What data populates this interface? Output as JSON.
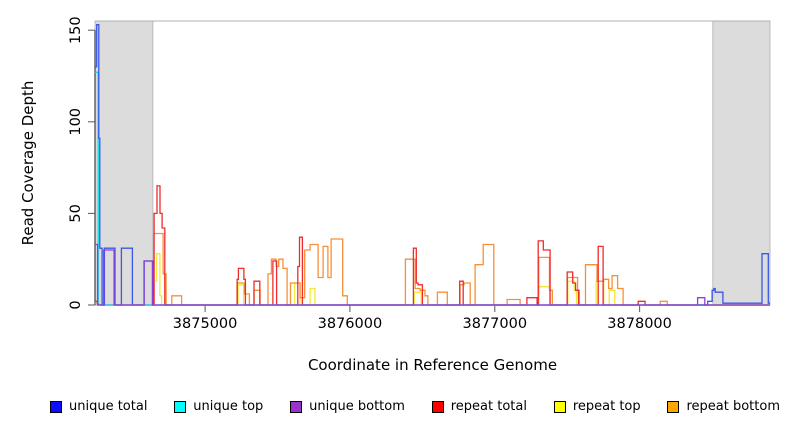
{
  "chart_data": {
    "type": "line-step",
    "title": "",
    "xlabel": "Coordinate in Reference Genome",
    "ylabel": "Read Coverage Depth",
    "xlim": [
      3874240,
      3878900
    ],
    "ylim": [
      0,
      155
    ],
    "xticks": [
      3875000,
      3876000,
      3877000,
      3878000
    ],
    "xtick_labels": [
      "3875000",
      "3876000",
      "3877000",
      "3878000"
    ],
    "yticks": [
      0,
      50,
      100,
      150
    ],
    "ytick_labels": [
      "0",
      "50",
      "100",
      "150"
    ],
    "grid": false,
    "legend_position": "bottom",
    "shade_color": "#dcdcdc",
    "shade_border": "#b0b0b0",
    "axis_color": "#333333",
    "tick_color": "#666666",
    "shaded_regions": [
      {
        "x0": 3874240,
        "x1": 3874640
      },
      {
        "x0": 3878505,
        "x1": 3878900
      }
    ],
    "draw_order": [
      "repeat top",
      "repeat bottom",
      "repeat total",
      "unique top",
      "unique total",
      "unique bottom"
    ],
    "series": [
      {
        "name": "unique total",
        "color": "#3a57e8",
        "legend_color": "#0d0dff",
        "points": [
          [
            3874240,
            130
          ],
          [
            3874252,
            153
          ],
          [
            3874266,
            91
          ],
          [
            3874273,
            31
          ],
          [
            3874289,
            0
          ],
          [
            3874305,
            31
          ],
          [
            3874378,
            0
          ],
          [
            3874422,
            31
          ],
          [
            3874498,
            0
          ],
          [
            3874580,
            24
          ],
          [
            3874640,
            0
          ],
          [
            3878470,
            2
          ],
          [
            3878500,
            8
          ],
          [
            3878512,
            9
          ],
          [
            3878522,
            7
          ],
          [
            3878575,
            1
          ],
          [
            3878845,
            28
          ],
          [
            3878888,
            1
          ]
        ]
      },
      {
        "name": "unique top",
        "color": "#00dcec",
        "legend_color": "#00ffff",
        "points": [
          [
            3874240,
            127
          ],
          [
            3874262,
            0
          ]
        ]
      },
      {
        "name": "unique bottom",
        "color": "#8f3fd4",
        "legend_color": "#9933cc",
        "points": [
          [
            3874240,
            33
          ],
          [
            3874258,
            0
          ],
          [
            3874300,
            30
          ],
          [
            3874372,
            0
          ],
          [
            3874578,
            24
          ],
          [
            3874636,
            0
          ],
          [
            3878400,
            4
          ],
          [
            3878450,
            0
          ]
        ]
      },
      {
        "name": "repeat total",
        "color": "#ee2c2c",
        "legend_color": "#ff0000",
        "points": [
          [
            3874240,
            2
          ],
          [
            3874258,
            0
          ],
          [
            3874648,
            50
          ],
          [
            3874668,
            65
          ],
          [
            3874689,
            50
          ],
          [
            3874703,
            42
          ],
          [
            3874722,
            0
          ],
          [
            3875222,
            14
          ],
          [
            3875230,
            20
          ],
          [
            3875268,
            14
          ],
          [
            3875278,
            0
          ],
          [
            3875338,
            13
          ],
          [
            3875378,
            0
          ],
          [
            3875468,
            24
          ],
          [
            3875494,
            0
          ],
          [
            3875640,
            21
          ],
          [
            3875652,
            37
          ],
          [
            3875672,
            0
          ],
          [
            3876438,
            31
          ],
          [
            3876458,
            12
          ],
          [
            3876470,
            11
          ],
          [
            3876500,
            0
          ],
          [
            3876758,
            13
          ],
          [
            3876782,
            0
          ],
          [
            3877222,
            4
          ],
          [
            3877292,
            0
          ],
          [
            3877300,
            35
          ],
          [
            3877335,
            30
          ],
          [
            3877382,
            0
          ],
          [
            3877500,
            18
          ],
          [
            3877538,
            12
          ],
          [
            3877558,
            8
          ],
          [
            3877578,
            0
          ],
          [
            3877714,
            32
          ],
          [
            3877748,
            0
          ],
          [
            3877990,
            2
          ],
          [
            3878038,
            0
          ]
        ]
      },
      {
        "name": "repeat top",
        "color": "#f2e73b",
        "legend_color": "#ffff00",
        "points": [
          [
            3874658,
            13
          ],
          [
            3874666,
            28
          ],
          [
            3874688,
            5
          ],
          [
            3874700,
            0
          ],
          [
            3875228,
            11
          ],
          [
            3875266,
            0
          ],
          [
            3875618,
            12
          ],
          [
            3875655,
            0
          ],
          [
            3875725,
            9
          ],
          [
            3875758,
            0
          ],
          [
            3876444,
            7
          ],
          [
            3876492,
            0
          ],
          [
            3877300,
            10
          ],
          [
            3877380,
            0
          ],
          [
            3877504,
            13
          ],
          [
            3877548,
            8
          ],
          [
            3877564,
            0
          ],
          [
            3877700,
            13
          ],
          [
            3877752,
            0
          ],
          [
            3877790,
            8
          ],
          [
            3877828,
            0
          ]
        ]
      },
      {
        "name": "repeat bottom",
        "color": "#f79039",
        "legend_color": "#ffa500",
        "points": [
          [
            3874240,
            1
          ],
          [
            3874265,
            0
          ],
          [
            3874646,
            39
          ],
          [
            3874710,
            17
          ],
          [
            3874731,
            0
          ],
          [
            3874770,
            5
          ],
          [
            3874838,
            0
          ],
          [
            3875220,
            12
          ],
          [
            3875272,
            6
          ],
          [
            3875306,
            0
          ],
          [
            3875338,
            8
          ],
          [
            3875380,
            0
          ],
          [
            3875434,
            17
          ],
          [
            3875458,
            25
          ],
          [
            3875490,
            21
          ],
          [
            3875508,
            25
          ],
          [
            3875538,
            20
          ],
          [
            3875566,
            0
          ],
          [
            3875590,
            12
          ],
          [
            3875656,
            4
          ],
          [
            3875688,
            30
          ],
          [
            3875725,
            33
          ],
          [
            3875780,
            15
          ],
          [
            3875815,
            32
          ],
          [
            3875848,
            15
          ],
          [
            3875870,
            36
          ],
          [
            3875950,
            5
          ],
          [
            3875982,
            0
          ],
          [
            3876383,
            25
          ],
          [
            3876450,
            9
          ],
          [
            3876485,
            8
          ],
          [
            3876518,
            5
          ],
          [
            3876538,
            0
          ],
          [
            3876604,
            7
          ],
          [
            3876672,
            0
          ],
          [
            3876760,
            11
          ],
          [
            3876788,
            12
          ],
          [
            3876830,
            0
          ],
          [
            3876864,
            22
          ],
          [
            3876920,
            33
          ],
          [
            3876993,
            0
          ],
          [
            3877085,
            3
          ],
          [
            3877175,
            0
          ],
          [
            3877303,
            26
          ],
          [
            3877378,
            8
          ],
          [
            3877398,
            0
          ],
          [
            3877500,
            15
          ],
          [
            3877572,
            8
          ],
          [
            3877584,
            0
          ],
          [
            3877626,
            22
          ],
          [
            3877706,
            13
          ],
          [
            3877752,
            14
          ],
          [
            3877786,
            9
          ],
          [
            3877810,
            16
          ],
          [
            3877848,
            9
          ],
          [
            3877886,
            0
          ],
          [
            3878142,
            2
          ],
          [
            3878190,
            0
          ]
        ]
      }
    ]
  }
}
